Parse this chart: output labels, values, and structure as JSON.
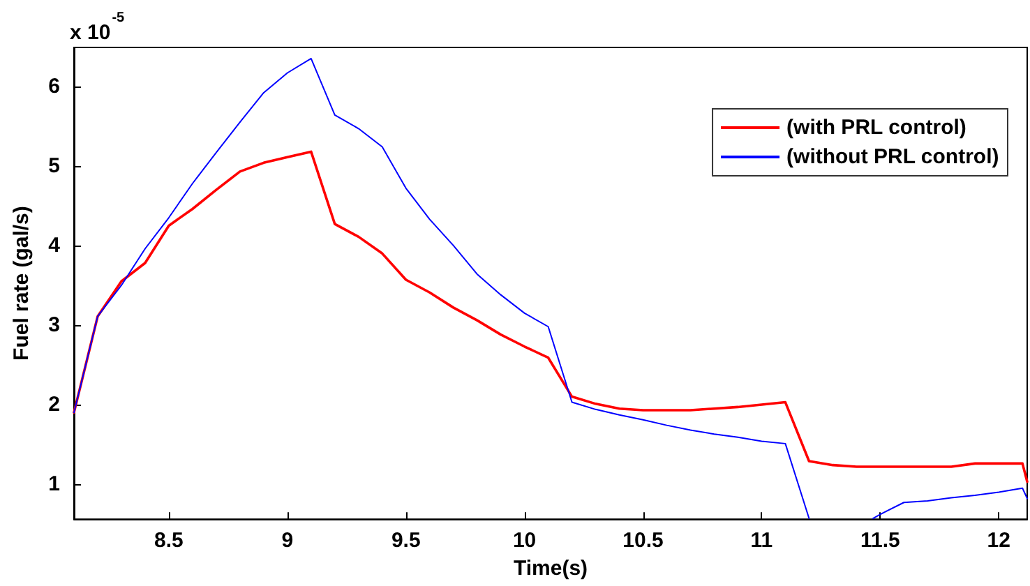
{
  "chart_data": {
    "type": "line",
    "xlabel": "Time(s)",
    "ylabel": "Fuel rate (gal/s)",
    "annotations": [
      "x 10$^{-5}$"
    ],
    "series": [
      {
        "name": "(with PRL control)",
        "color": "#ff0000",
        "x": [
          8.1,
          8.2,
          8.3,
          8.4,
          8.5,
          8.6,
          8.7,
          8.8,
          8.9,
          9.0,
          9.1,
          9.2,
          9.3,
          9.4,
          9.5,
          9.6,
          9.7,
          9.8,
          9.9,
          10.0,
          10.1,
          10.2,
          10.3,
          10.4,
          10.5,
          10.6,
          10.7,
          10.8,
          10.9,
          11.0,
          11.1,
          11.2,
          11.3,
          11.4,
          11.5,
          11.6,
          11.7,
          11.8,
          11.9,
          12.0,
          12.1,
          12.12
        ],
        "values": [
          1.9,
          3.11,
          3.55,
          3.78,
          4.25,
          4.46,
          4.7,
          4.93,
          5.04,
          5.11,
          5.18,
          4.27,
          4.11,
          3.9,
          3.57,
          3.41,
          3.22,
          3.06,
          2.88,
          2.73,
          2.59,
          2.1,
          2.01,
          1.95,
          1.93,
          1.93,
          1.93,
          1.95,
          1.97,
          2.0,
          2.03,
          1.29,
          1.24,
          1.22,
          1.22,
          1.22,
          1.22,
          1.22,
          1.26,
          1.26,
          1.26,
          1.03
        ]
      },
      {
        "name": "(without PRL control)",
        "color": "#0000ff",
        "x": [
          8.1,
          8.2,
          8.3,
          8.4,
          8.5,
          8.6,
          8.7,
          8.8,
          8.9,
          9.0,
          9.1,
          9.2,
          9.3,
          9.4,
          9.5,
          9.6,
          9.7,
          9.8,
          9.9,
          10.0,
          10.1,
          10.2,
          10.3,
          10.4,
          10.5,
          10.6,
          10.7,
          10.8,
          10.9,
          11.0,
          11.1,
          11.2,
          11.3,
          11.47,
          11.5,
          11.6,
          11.7,
          11.8,
          11.9,
          12.0,
          12.1,
          12.12
        ],
        "values": [
          1.9,
          3.11,
          3.5,
          3.96,
          4.35,
          4.78,
          5.17,
          5.55,
          5.92,
          6.17,
          6.35,
          5.64,
          5.47,
          5.24,
          4.72,
          4.33,
          4.0,
          3.64,
          3.38,
          3.15,
          2.98,
          2.03,
          1.94,
          1.87,
          1.81,
          1.74,
          1.68,
          1.63,
          1.59,
          1.54,
          1.51,
          0.57,
          null,
          0.57,
          0.62,
          0.77,
          0.79,
          0.83,
          0.86,
          0.9,
          0.95,
          0.82
        ]
      }
    ],
    "xlim": [
      8.1,
      12.12
    ],
    "ylim": [
      0.56,
      6.49
    ],
    "xticks": [
      8.5,
      9,
      9.5,
      10,
      10.5,
      11,
      11.5,
      12
    ],
    "yticks": [
      1,
      2,
      3,
      4,
      5,
      6
    ],
    "grid": false,
    "legend": "top right",
    "marker": "none",
    "line_style": "solid"
  }
}
